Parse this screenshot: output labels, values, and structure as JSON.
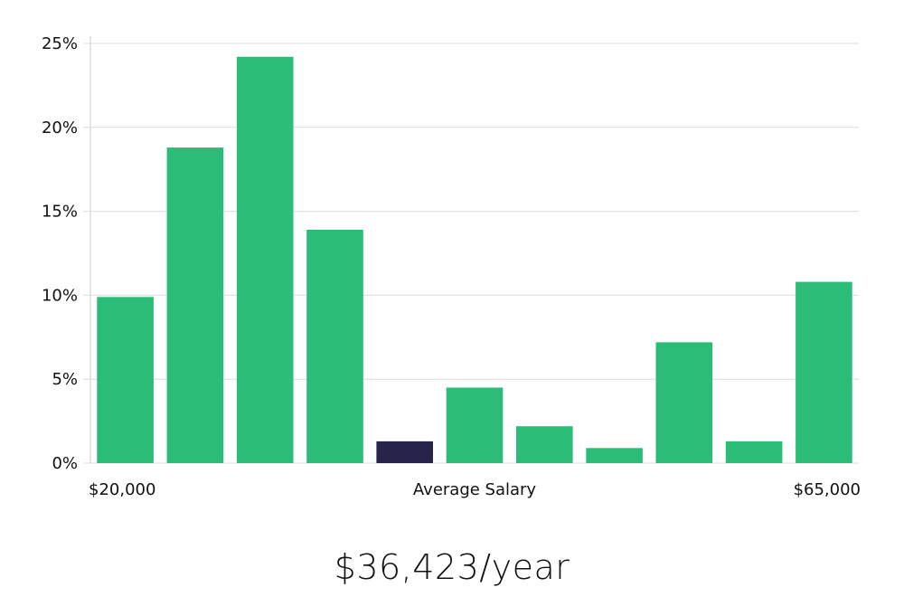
{
  "chart_data": {
    "type": "bar",
    "title": "",
    "xlabel": "Average Salary",
    "ylabel": "",
    "x_range_labels": [
      "$20,000",
      "$65,000"
    ],
    "ylim": [
      0,
      25
    ],
    "yticks": [
      0,
      5,
      10,
      15,
      20,
      25
    ],
    "ytick_labels": [
      "0%",
      "5%",
      "10%",
      "15%",
      "20%",
      "25%"
    ],
    "grid": true,
    "values": [
      9.9,
      18.8,
      24.2,
      13.9,
      1.3,
      4.5,
      2.2,
      0.9,
      7.2,
      1.3,
      10.8
    ],
    "highlight_index": 4,
    "colors": {
      "bar": "#2bbd77",
      "highlight": "#26244a",
      "grid": "#dcdcdc",
      "axis": "#cccccc"
    }
  },
  "salary": {
    "text": "$36,423/year"
  }
}
